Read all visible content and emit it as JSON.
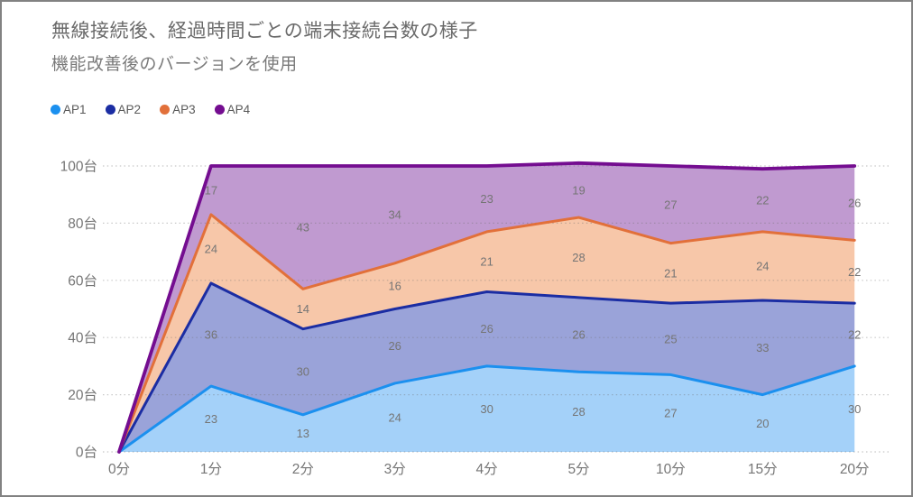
{
  "frame": {
    "border_color": "#828282",
    "background": "#ffffff"
  },
  "header": {
    "title": "無線接続後、経過時間ごとの端末接続台数の様子",
    "subtitle": "機能改善後のバージョンを使用",
    "title_color": "#6a6a6a",
    "subtitle_color": "#7a7a7a"
  },
  "chart_data": {
    "type": "area",
    "stacked": true,
    "title": "無線接続後、経過時間ごとの端末接続台数の様子",
    "subtitle": "機能改善後のバージョンを使用",
    "categories": [
      "0分",
      "1分",
      "2分",
      "3分",
      "4分",
      "5分",
      "10分",
      "15分",
      "20分"
    ],
    "series": [
      {
        "name": "AP1",
        "line_color": "#1b90ef",
        "fill_color": "#a4d1f9",
        "values": [
          0,
          23,
          13,
          24,
          30,
          28,
          27,
          20,
          30
        ]
      },
      {
        "name": "AP2",
        "line_color": "#1b2da3",
        "fill_color": "#9aa3d9",
        "values": [
          0,
          36,
          30,
          26,
          26,
          26,
          25,
          33,
          22
        ]
      },
      {
        "name": "AP3",
        "line_color": "#e2703a",
        "fill_color": "#f7c7a9",
        "values": [
          0,
          24,
          14,
          16,
          21,
          28,
          21,
          24,
          22
        ]
      },
      {
        "name": "AP4",
        "line_color": "#740d90",
        "fill_color": "#c09ad0",
        "values": [
          0,
          17,
          43,
          34,
          23,
          19,
          27,
          22,
          26
        ]
      }
    ],
    "y_ticks": [
      {
        "value": 0,
        "label": "0台"
      },
      {
        "value": 20,
        "label": "20台"
      },
      {
        "value": 40,
        "label": "40台"
      },
      {
        "value": 60,
        "label": "60台"
      },
      {
        "value": 80,
        "label": "80台"
      },
      {
        "value": 100,
        "label": "100台"
      }
    ],
    "ylim": [
      0,
      100
    ],
    "xlabel": "",
    "ylabel": "",
    "grid": "horizontal-dotted",
    "gridline_color": "#6f6f6f",
    "legend_position": "top-left",
    "data_labels": true,
    "data_label_color": "#757575",
    "axis_text_color": "#757575",
    "legend_text_color": "#595959"
  }
}
